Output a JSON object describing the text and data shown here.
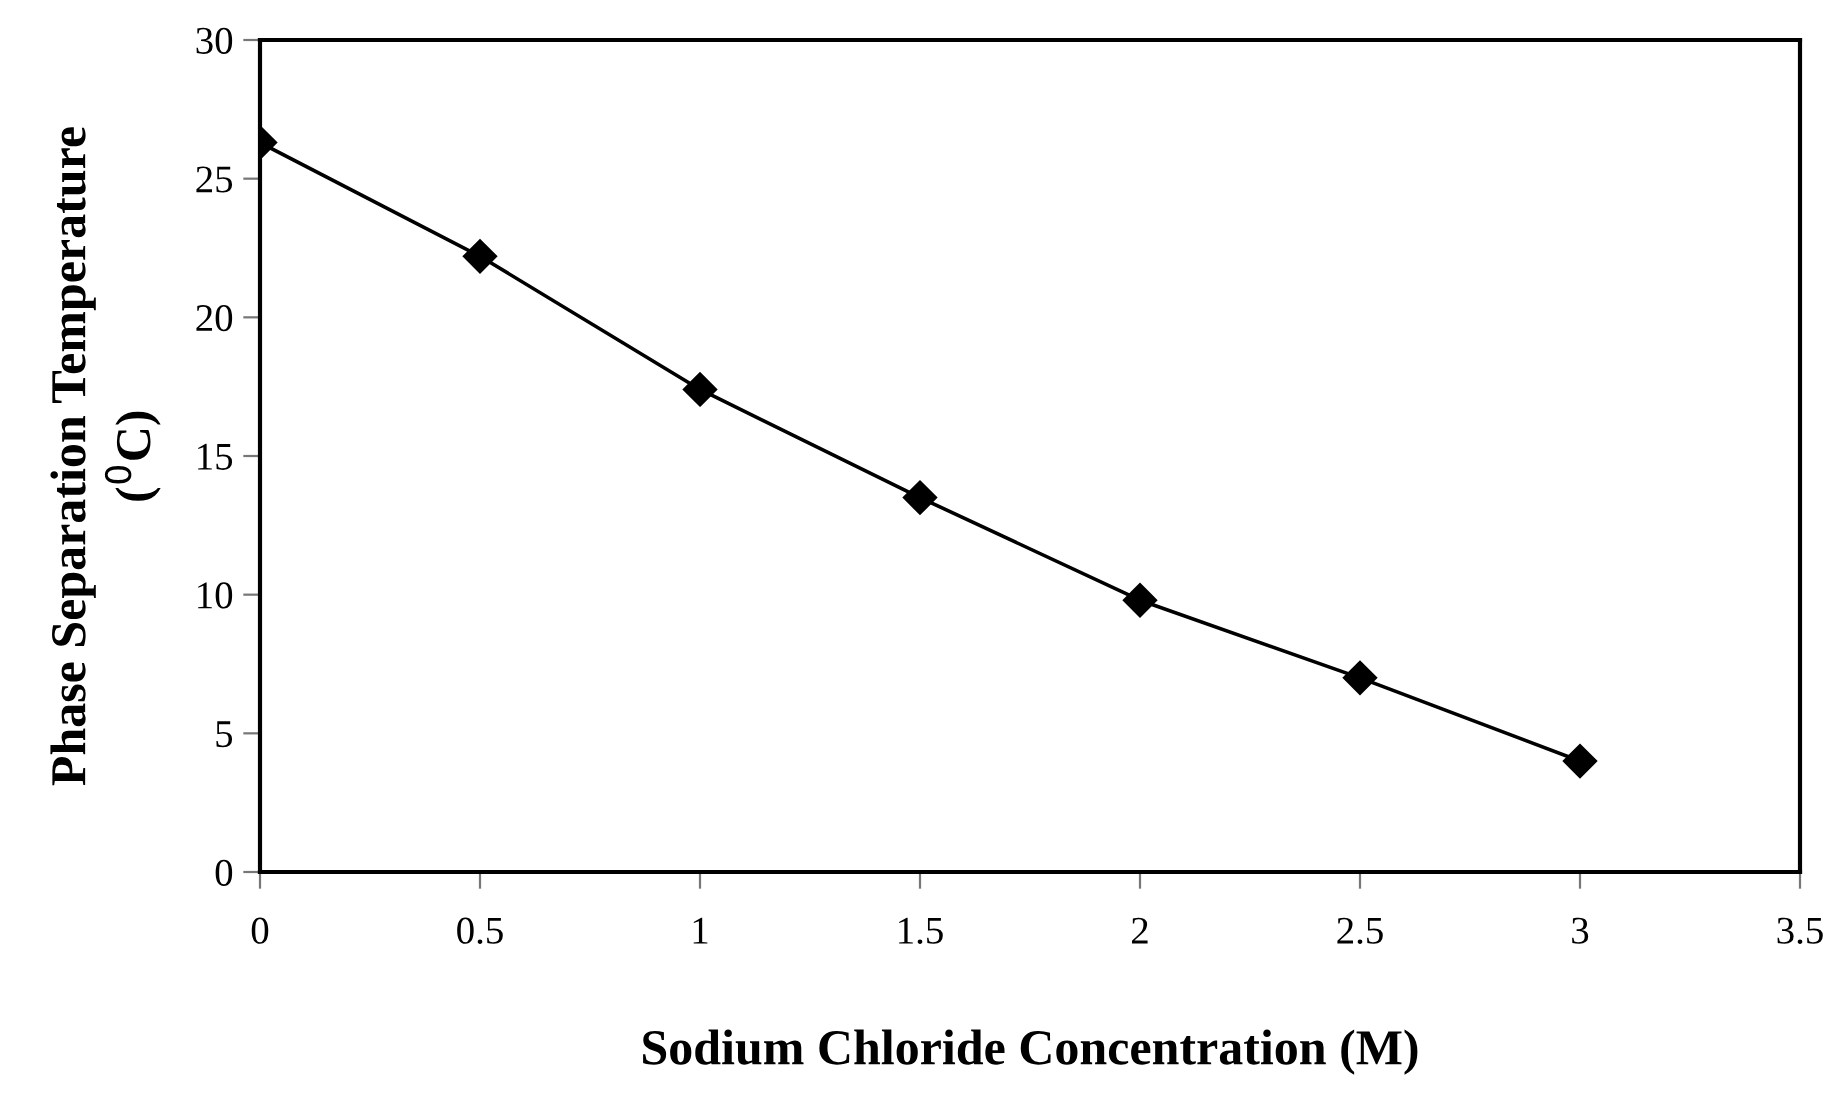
{
  "chart_data": {
    "type": "line",
    "xlabel": "Sodium Chloride Concentration (M)",
    "ylabel": "Phase Separation Temperature\n($^{0}$C)",
    "x": [
      0,
      0.5,
      1,
      1.5,
      2,
      2.5,
      3
    ],
    "series": [
      {
        "color": "#000000",
        "values": [
          26.3,
          22.2,
          17.4,
          13.5,
          9.8,
          7.0,
          4.0
        ]
      }
    ],
    "xlim": [
      0,
      3.5
    ],
    "xticks": [
      0,
      0.5,
      1,
      1.5,
      2,
      2.5,
      3,
      3.5
    ],
    "ylim": [
      0,
      30
    ],
    "yticks": [
      0,
      5,
      10,
      15,
      20,
      25,
      30
    ],
    "grid": false,
    "legend": false,
    "marker": "diamond",
    "line_style": "solid"
  }
}
